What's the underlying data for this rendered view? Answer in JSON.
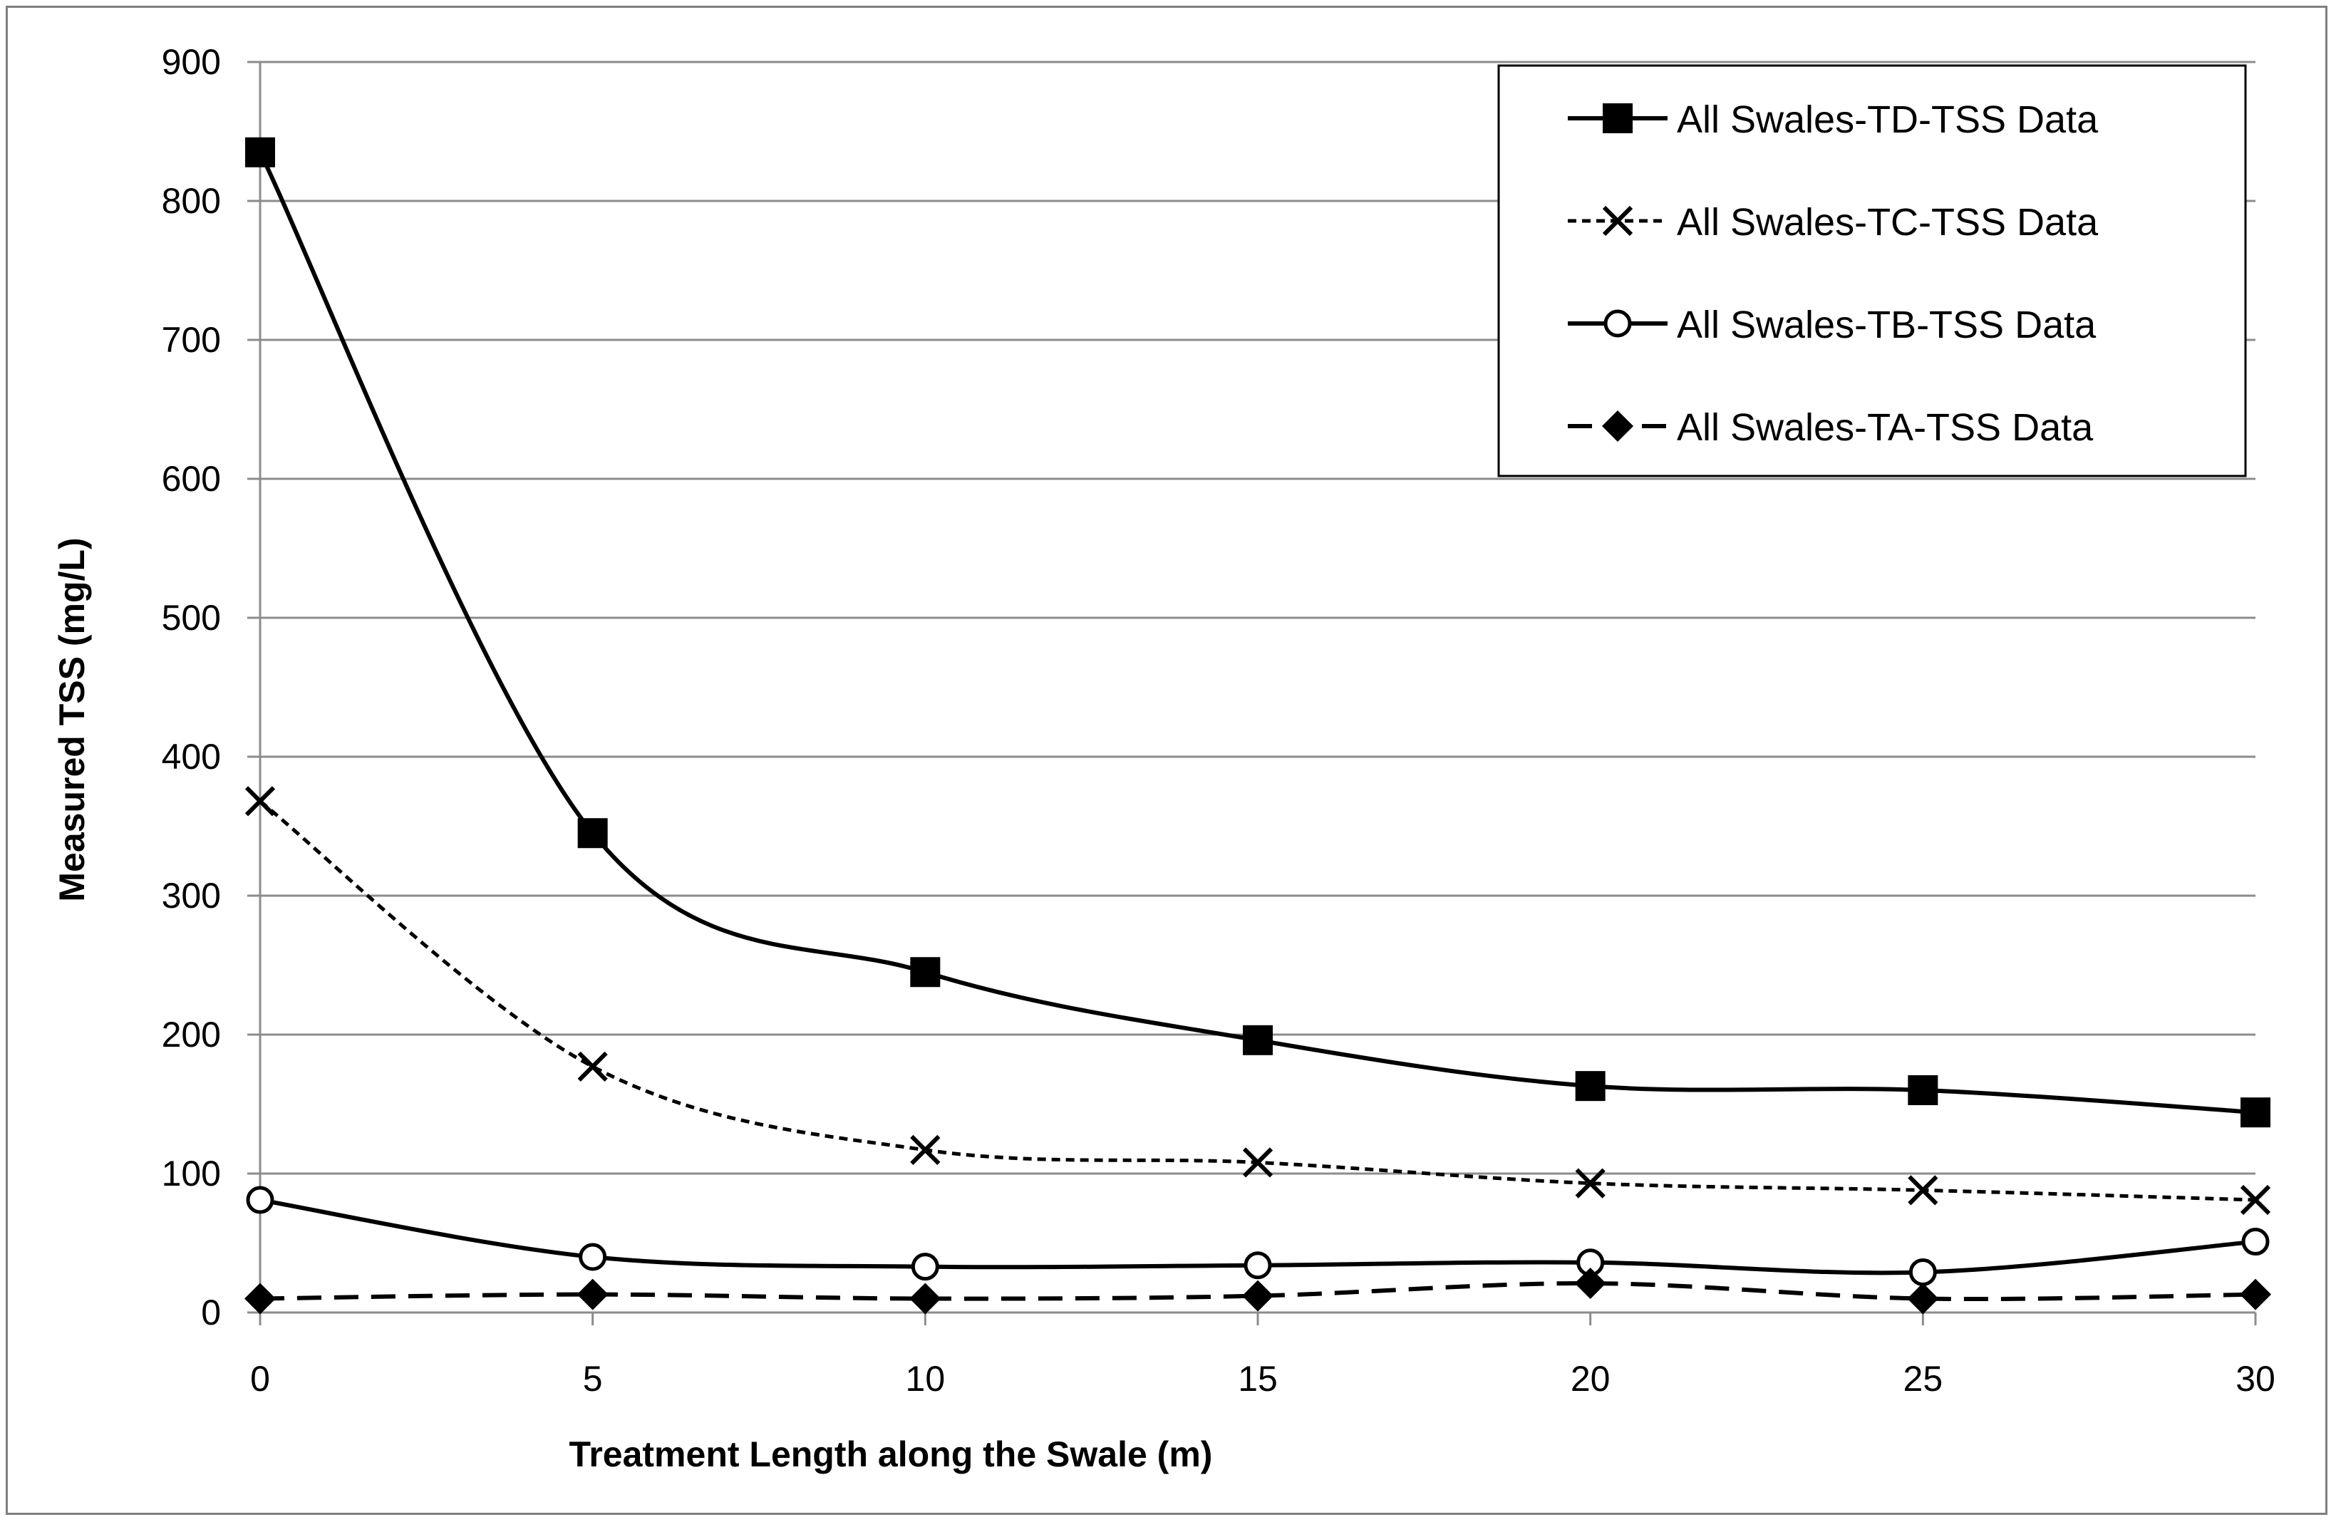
{
  "chart_data": {
    "type": "line",
    "title": "",
    "xlabel": "Treatment Length along the  Swale (m)",
    "ylabel": "Measured TSS (mg/L)",
    "x": [
      0,
      5,
      10,
      15,
      20,
      25,
      30
    ],
    "xlim": [
      0,
      30
    ],
    "ylim": [
      0,
      900
    ],
    "xticks": [
      0,
      5,
      10,
      15,
      20,
      25,
      30
    ],
    "yticks": [
      0,
      100,
      200,
      300,
      400,
      500,
      600,
      700,
      800,
      900
    ],
    "grid": "horizontal",
    "legend_position": "top-right",
    "series": [
      {
        "name": "All Swales-TD-TSS Data",
        "marker": "square",
        "line": "solid",
        "values": [
          835,
          345,
          245,
          196,
          163,
          160,
          144
        ]
      },
      {
        "name": "All Swales-TC-TSS Data",
        "marker": "x",
        "line": "dotted",
        "values": [
          368,
          177,
          117,
          108,
          93,
          88,
          81
        ]
      },
      {
        "name": "All Swales-TB-TSS Data",
        "marker": "circle",
        "line": "solid",
        "values": [
          81,
          40,
          33,
          34,
          36,
          29,
          51
        ]
      },
      {
        "name": "All Swales-TA-TSS Data",
        "marker": "diamond",
        "line": "dashed",
        "values": [
          10,
          13,
          10,
          12,
          21,
          10,
          13
        ]
      }
    ],
    "colors": {
      "line": "#000000",
      "grid": "#8c8c8c",
      "frame": "#7f7f7f"
    }
  }
}
